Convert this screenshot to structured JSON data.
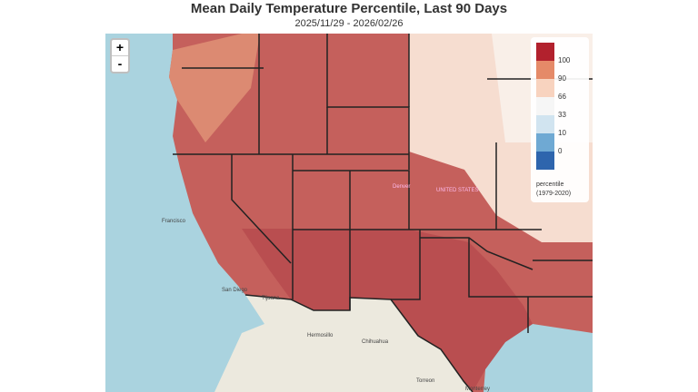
{
  "title": "Mean Daily Temperature Percentile, Last 90 Days",
  "subtitle": "2025/11/29 - 2026/02/26",
  "zoom": {
    "in": "+",
    "out": "-"
  },
  "legend": {
    "colors": [
      "#b2212d",
      "#e58a68",
      "#f8d3bf",
      "#f6f6f6",
      "#d1e4f0",
      "#6fa9d3",
      "#2e65ad"
    ],
    "labels": [
      "100",
      "90",
      "66",
      "33",
      "10",
      "0"
    ],
    "title": "percentile",
    "period": "(1979-2020)"
  },
  "map_labels": [
    "Francisco",
    "San Diego",
    "Tijuana",
    "Denver",
    "UNITED STATES",
    "Hermosillo",
    "Chihuahua",
    "Torreon",
    "Monterrey"
  ]
}
